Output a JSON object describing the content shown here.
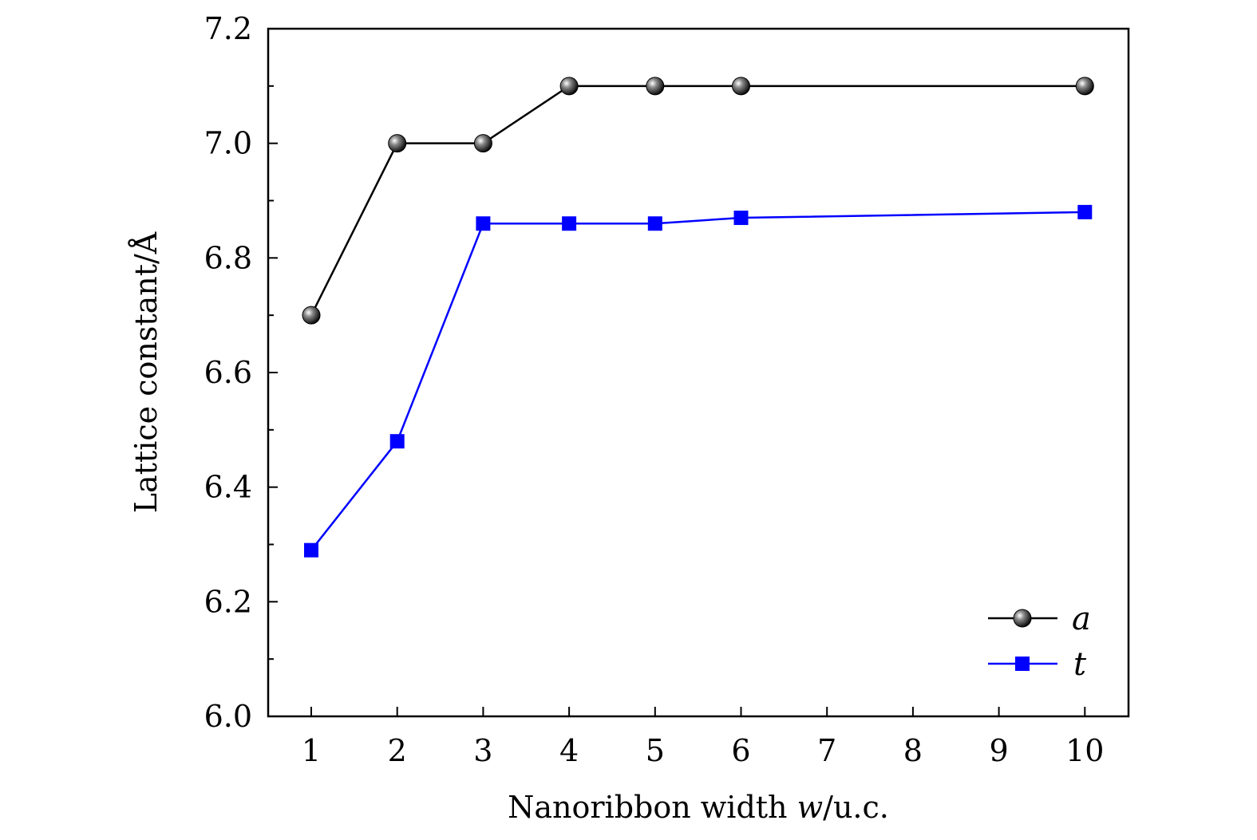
{
  "chart_data": {
    "type": "line",
    "title": "",
    "xlabel": "Nanoribbon width w/u.c.",
    "xlabel_parts": {
      "prefix": "Nanoribbon width ",
      "var": "w",
      "suffix": "/u.c."
    },
    "ylabel": "Lattice constant/Å",
    "categories": [
      "1",
      "2",
      "3",
      "4",
      "5",
      "6",
      "7",
      "8",
      "9",
      "10"
    ],
    "ylim": [
      6.0,
      7.2
    ],
    "yticks": [
      "6.0",
      "6.2",
      "6.4",
      "6.6",
      "6.8",
      "7.0",
      "7.2"
    ],
    "legend_position": "bottom-right",
    "series": [
      {
        "name": "a",
        "color": "#000000",
        "marker": "sphere",
        "x": [
          "1",
          "2",
          "3",
          "4",
          "5",
          "6",
          "10"
        ],
        "values": [
          6.7,
          7.0,
          7.0,
          7.1,
          7.1,
          7.1,
          7.1
        ]
      },
      {
        "name": "t",
        "color": "#0000ff",
        "marker": "square",
        "x": [
          "1",
          "2",
          "3",
          "4",
          "5",
          "6",
          "10"
        ],
        "values": [
          6.29,
          6.48,
          6.86,
          6.86,
          6.86,
          6.87,
          6.88
        ]
      }
    ]
  }
}
